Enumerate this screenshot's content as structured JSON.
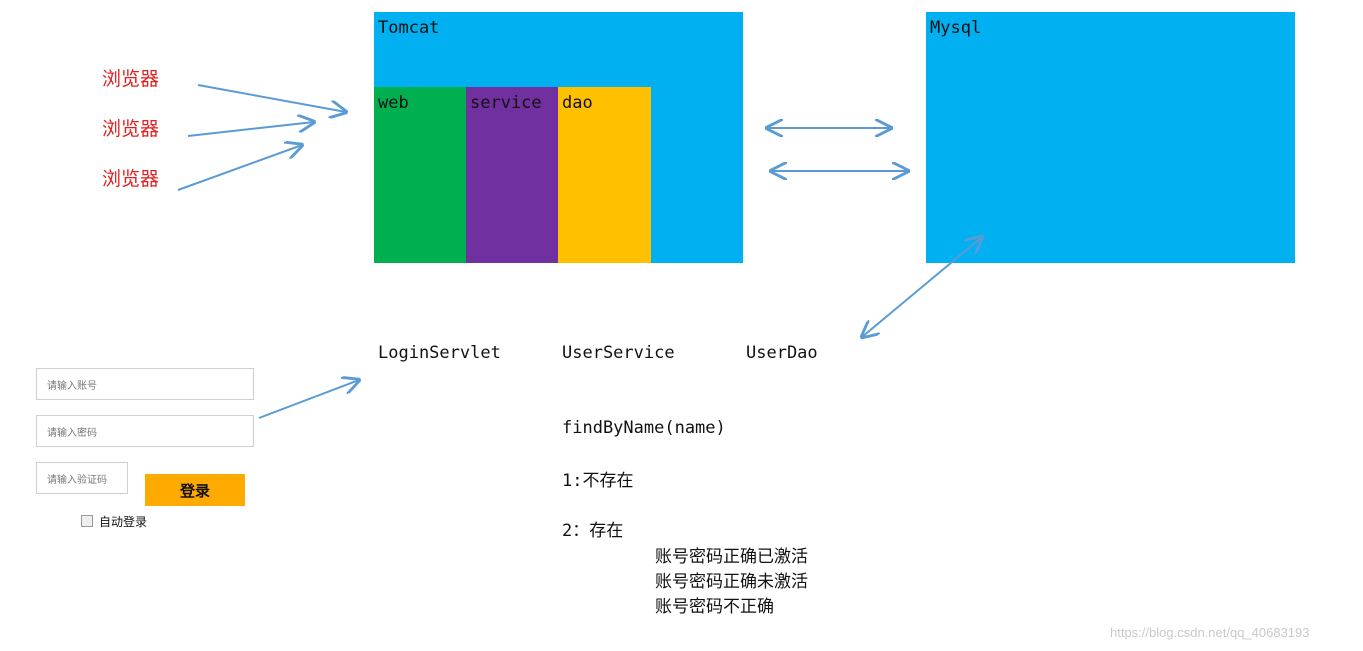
{
  "browsers": [
    "浏览器",
    "浏览器",
    "浏览器"
  ],
  "tomcat": {
    "label": "Tomcat",
    "layers": [
      {
        "label": "web",
        "color": "#00b050"
      },
      {
        "label": "service",
        "color": "#7030a0"
      },
      {
        "label": "dao",
        "color": "#ffc000"
      }
    ]
  },
  "mysql": {
    "label": "Mysql"
  },
  "colors": {
    "server": "#00b0f0",
    "arrow": "#5b9bd5",
    "browser": "#e02020",
    "button": "#ffaa00"
  },
  "classes": {
    "servlet": "LoginServlet",
    "service": "UserService",
    "dao": "UserDao"
  },
  "notes": {
    "method": "findByName(name)",
    "case1": "1:不存在",
    "case2": "2：存在",
    "sub": [
      "账号密码正确已激活",
      "账号密码正确未激活",
      "账号密码不正确"
    ]
  },
  "login_form": {
    "account_placeholder": "请输入账号",
    "password_placeholder": "请输入密码",
    "captcha_placeholder": "请输入验证码",
    "login_button": "登录",
    "auto_login": "自动登录"
  },
  "watermark": "https://blog.csdn.net/qq_40683193"
}
